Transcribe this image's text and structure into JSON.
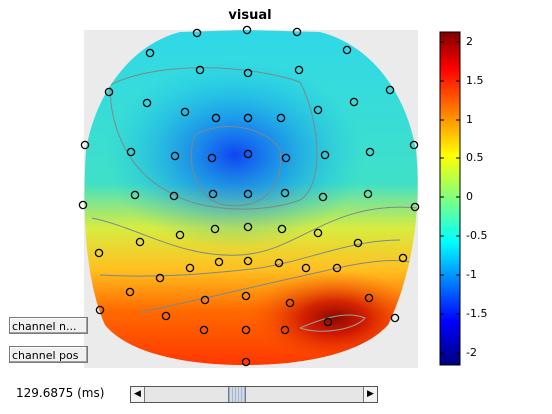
{
  "figure": {
    "title": "visual"
  },
  "colorbar": {
    "ticks": [
      "2",
      "1.5",
      "1",
      "0.5",
      "0",
      "-0.5",
      "-1",
      "-1.5",
      "-2"
    ],
    "range": [
      -2.2,
      2.2
    ]
  },
  "buttons": {
    "channel_names": "channel n...",
    "channel_pos": "channel pos"
  },
  "time": {
    "label": "129.6875 (ms)",
    "slider_fraction": 0.41
  },
  "icons": {
    "scroll_left": "left-arrow-icon",
    "scroll_right": "right-arrow-icon"
  }
}
